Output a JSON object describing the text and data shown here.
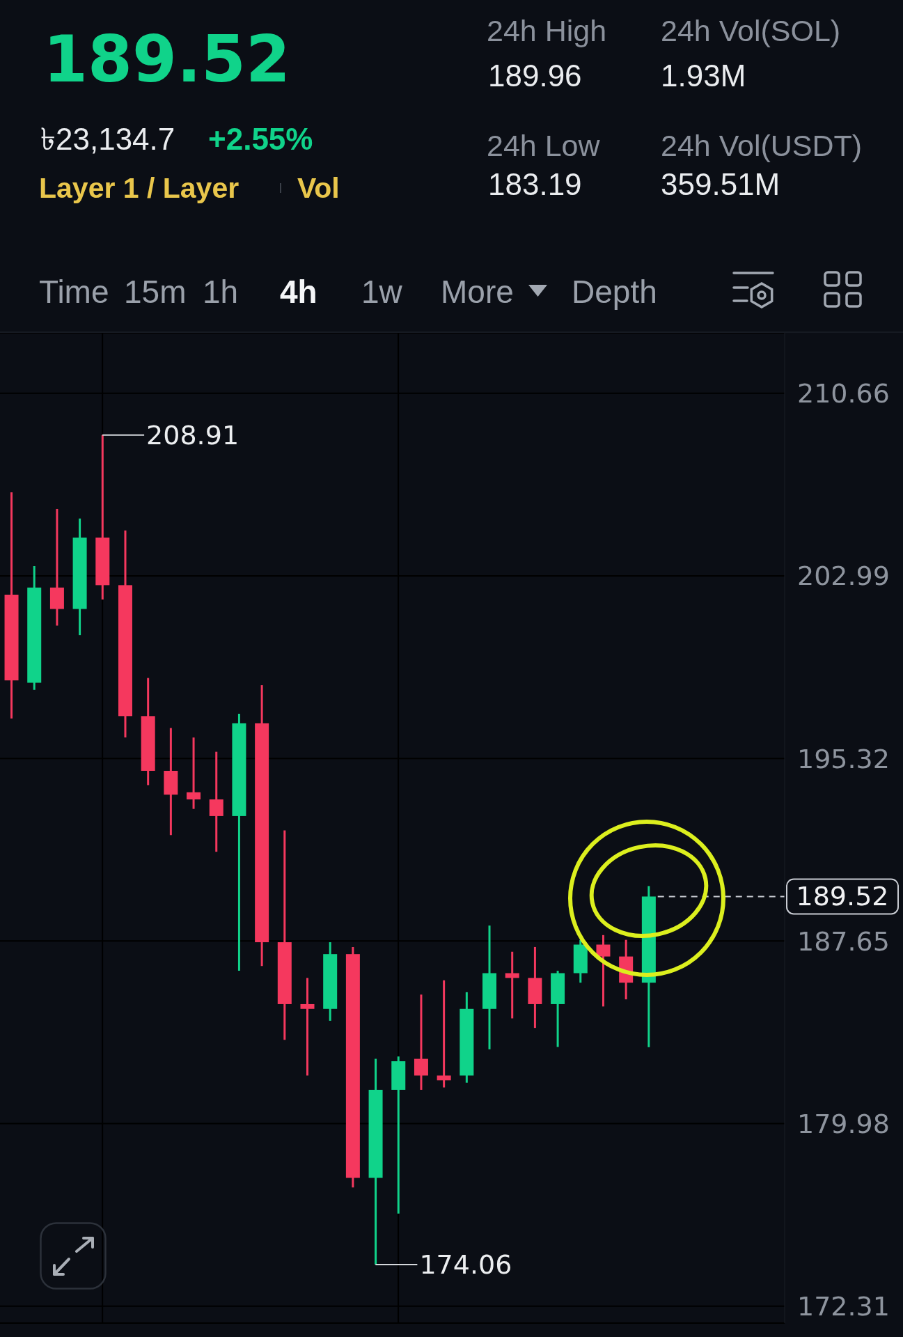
{
  "chart_data": [
    {
      "type": "other",
      "title": "189.52",
      "annotations": [
        "৳23,134.7",
        "+2.55%",
        "Layer 1 / Layer",
        "Vol",
        "24h High",
        "189.96",
        "24h Vol(SOL)",
        "1.93M",
        "24h Low",
        "183.19",
        "24h Vol(USDT)",
        "359.51M",
        "Time",
        "15m",
        "1h",
        "4h",
        "1w",
        "More",
        "Depth"
      ]
    },
    {
      "type": "candlestick",
      "categories": [
        null,
        null,
        null,
        null,
        null,
        null,
        null,
        null,
        null,
        null,
        null,
        null,
        null,
        null,
        null,
        null,
        null,
        null,
        null,
        null,
        null,
        null,
        null,
        null,
        null,
        null,
        null,
        null,
        null
      ],
      "ohlc": [
        [
          202.2,
          206.5,
          197.0,
          198.6
        ],
        [
          198.5,
          203.4,
          198.2,
          202.5
        ],
        [
          202.5,
          205.8,
          200.9,
          201.6
        ],
        [
          201.6,
          205.4,
          200.5,
          204.6
        ],
        [
          204.6,
          208.91,
          202.0,
          202.6
        ],
        [
          202.6,
          204.9,
          196.2,
          197.1
        ],
        [
          197.1,
          198.7,
          194.2,
          194.8
        ],
        [
          194.8,
          196.6,
          192.1,
          193.8
        ],
        [
          193.9,
          196.2,
          193.2,
          193.6
        ],
        [
          193.6,
          195.6,
          191.4,
          192.9
        ],
        [
          192.9,
          197.2,
          186.4,
          196.8
        ],
        [
          196.8,
          198.4,
          186.6,
          187.6
        ],
        [
          187.6,
          192.3,
          183.5,
          185.0
        ],
        [
          185.0,
          186.1,
          182.0,
          184.8
        ],
        [
          184.8,
          187.6,
          184.3,
          187.1
        ],
        [
          187.1,
          187.4,
          177.3,
          177.7
        ],
        [
          177.7,
          182.7,
          174.06,
          181.4
        ],
        [
          181.4,
          182.8,
          176.2,
          182.6
        ],
        [
          182.7,
          185.4,
          181.4,
          182.0
        ],
        [
          182.0,
          186.0,
          181.5,
          181.8
        ],
        [
          182.0,
          185.5,
          181.7,
          184.8
        ],
        [
          184.8,
          188.3,
          183.1,
          186.3
        ],
        [
          186.3,
          187.2,
          184.4,
          186.1
        ],
        [
          186.1,
          187.4,
          184.0,
          185.0
        ],
        [
          185.0,
          186.4,
          183.2,
          186.3
        ],
        [
          186.3,
          187.7,
          185.9,
          187.5
        ],
        [
          187.5,
          187.9,
          184.9,
          187.0
        ],
        [
          187.0,
          187.7,
          185.2,
          185.9
        ],
        [
          185.9,
          189.96,
          183.19,
          189.52
        ]
      ],
      "colors": [
        "#f5385e",
        "#10d38a",
        "#f5385e",
        "#10d38a",
        "#f5385e",
        "#f5385e",
        "#f5385e",
        "#f5385e",
        "#f5385e",
        "#f5385e",
        "#10d38a",
        "#f5385e",
        "#f5385e",
        "#f5385e",
        "#10d38a",
        "#f5385e",
        "#10d38a",
        "#10d38a",
        "#f5385e",
        "#f5385e",
        "#10d38a",
        "#10d38a",
        "#f5385e",
        "#f5385e",
        "#10d38a",
        "#10d38a",
        "#f5385e",
        "#f5385e",
        "#10d38a"
      ],
      "ylim": [
        171.6,
        213.2
      ],
      "yticks": [
        172.31,
        179.98,
        187.65,
        195.32,
        202.99,
        210.66
      ],
      "grid": true,
      "tick_labels": "y",
      "annotations": [
        "208.91",
        "174.06"
      ],
      "ref_lines": [
        {
          "axis": "y",
          "value": 189.52,
          "label": "189.52",
          "color": "#c9ccd3",
          "line_style": "dashed"
        }
      ]
    }
  ]
}
